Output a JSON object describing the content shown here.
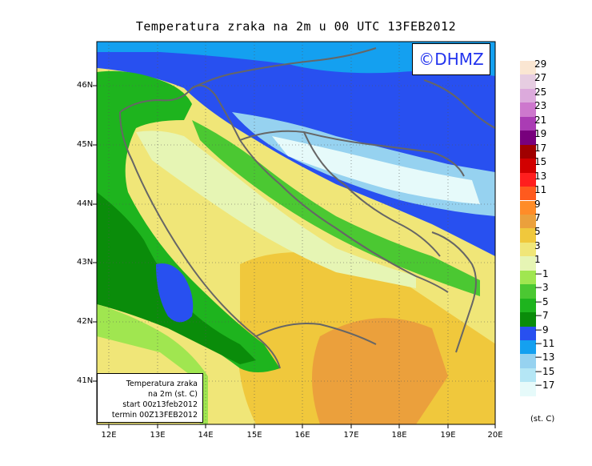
{
  "title": "Temperatura zraka na 2m u 00 UTC 13FEB2012",
  "logo": "©DHMZ",
  "info_box": {
    "line1": "Temperatura zraka",
    "line2": "na 2m (st. C)",
    "line3": "start 00z13feb2012",
    "line4": "termin 00Z13FEB2012"
  },
  "lat_labels": [
    "46N",
    "45N",
    "44N",
    "43N",
    "42N",
    "41N"
  ],
  "lon_labels": [
    "12E",
    "13E",
    "14E",
    "15E",
    "16E",
    "17E",
    "18E",
    "19E",
    "20E"
  ],
  "colorbar": {
    "labels": [
      "29",
      "27",
      "25",
      "23",
      "21",
      "19",
      "17",
      "15",
      "13",
      "11",
      "9",
      "7",
      "5",
      "3",
      "1",
      "−1",
      "−3",
      "−5",
      "−7",
      "−9",
      "−11",
      "−13",
      "−15",
      "−17"
    ],
    "colors": [
      "#fae6d2",
      "#e6cde1",
      "#dcaadc",
      "#cd78cd",
      "#aa3cb4",
      "#78007d",
      "#a00000",
      "#d20000",
      "#ff1e1e",
      "#ff5a1e",
      "#ff8c28",
      "#eba03c",
      "#f0c83c",
      "#f0e678",
      "#e6f5b4",
      "#a0e650",
      "#4bc832",
      "#1eb41e",
      "#0a8c0a",
      "#2850f0",
      "#14a0f0",
      "#96d2f0",
      "#b4e6f5",
      "#e6fafa"
    ],
    "units": "(st. C)"
  }
}
